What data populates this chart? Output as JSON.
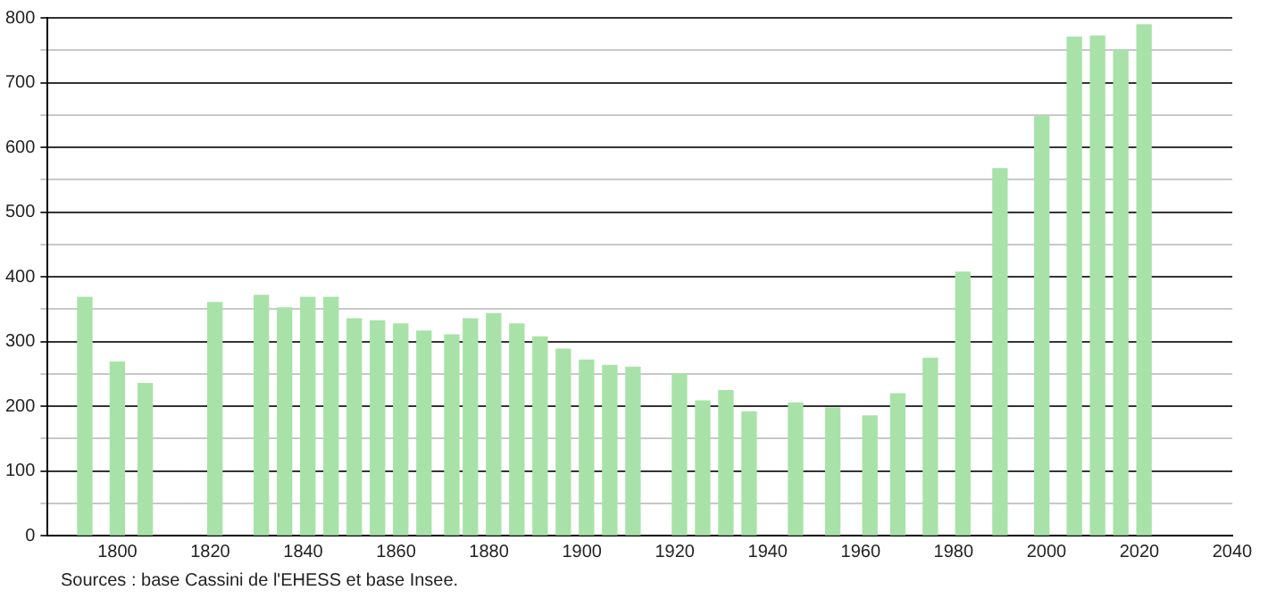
{
  "chart_data": {
    "type": "bar",
    "x": [
      1793,
      1800,
      1806,
      1821,
      1831,
      1836,
      1841,
      1846,
      1851,
      1856,
      1861,
      1866,
      1872,
      1876,
      1881,
      1886,
      1891,
      1896,
      1901,
      1906,
      1911,
      1921,
      1926,
      1931,
      1936,
      1946,
      1954,
      1962,
      1968,
      1975,
      1982,
      1990,
      1999,
      2006,
      2011,
      2016,
      2021
    ],
    "values": [
      368,
      268,
      235,
      360,
      371,
      352,
      368,
      368,
      335,
      332,
      327,
      316,
      310,
      335,
      343,
      327,
      307,
      288,
      271,
      263,
      260,
      249,
      208,
      224,
      191,
      205,
      197,
      185,
      219,
      274,
      407,
      567,
      648,
      770,
      772,
      750,
      789
    ],
    "color": "#a8e2a8",
    "xlim": [
      1785,
      2040
    ],
    "xticks": [
      1800,
      1820,
      1840,
      1860,
      1880,
      1900,
      1920,
      1940,
      1960,
      1980,
      2000,
      2020,
      2040
    ],
    "ylim": [
      0,
      800
    ],
    "yticks": [
      0,
      {
        "value": 50,
        "label": null
      },
      100,
      {
        "value": 150,
        "label": null
      },
      200,
      {
        "value": 250,
        "label": null
      },
      300,
      {
        "value": 350,
        "label": null
      },
      400,
      {
        "value": 450,
        "label": null
      },
      500,
      {
        "value": 550,
        "label": null
      },
      600,
      {
        "value": 650,
        "label": null
      },
      700,
      {
        "value": 750,
        "label": null
      },
      800
    ],
    "grid": "y",
    "annotations": [
      "Sources : base Cassini de l'EHESS et base Insee."
    ]
  }
}
